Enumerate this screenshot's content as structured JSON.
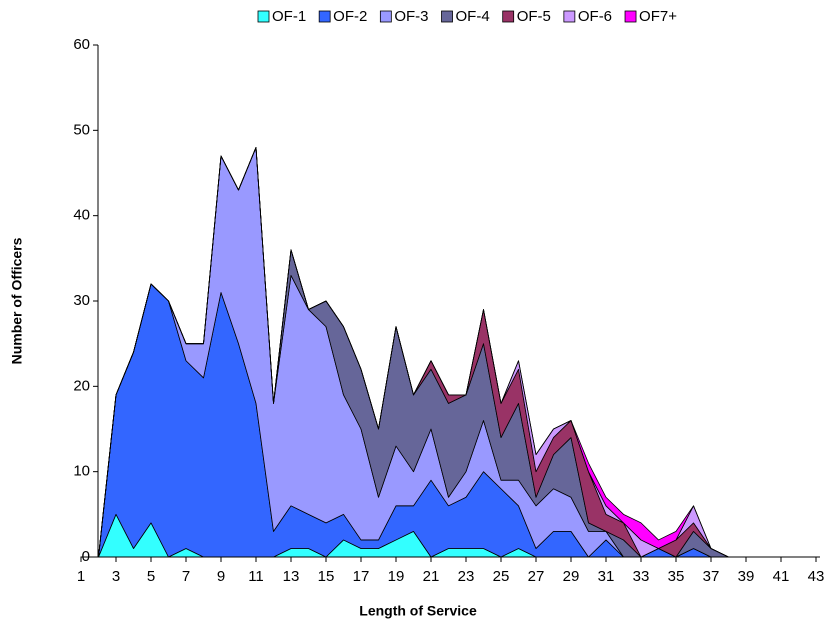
{
  "chart_data": {
    "type": "stacked_area",
    "x_label": "Length of Service",
    "y_label": "Number of Officers",
    "x": [
      1,
      2,
      3,
      4,
      5,
      6,
      7,
      8,
      9,
      10,
      11,
      12,
      13,
      14,
      15,
      16,
      17,
      18,
      19,
      20,
      21,
      22,
      23,
      24,
      25,
      26,
      27,
      28,
      29,
      30,
      31,
      32,
      33,
      34,
      35,
      36,
      37,
      38,
      39,
      40,
      41,
      42,
      43
    ],
    "series": [
      {
        "name": "OF-1",
        "color": "#33ffff",
        "values": [
          0,
          0,
          5,
          1,
          4,
          0,
          1,
          0,
          0,
          0,
          0,
          0,
          1,
          1,
          0,
          2,
          1,
          1,
          2,
          3,
          0,
          1,
          1,
          1,
          0,
          1,
          0,
          0,
          0,
          0,
          0,
          0,
          0,
          0,
          0,
          0,
          0,
          0,
          0,
          0,
          0,
          0,
          0
        ]
      },
      {
        "name": "OF-2",
        "color": "#3366ff",
        "values": [
          0,
          0,
          14,
          23,
          28,
          30,
          22,
          21,
          31,
          25,
          18,
          3,
          5,
          4,
          4,
          3,
          1,
          1,
          4,
          3,
          9,
          5,
          6,
          9,
          8,
          5,
          1,
          3,
          3,
          0,
          2,
          0,
          0,
          1,
          0,
          1,
          0,
          0,
          0,
          0,
          0,
          0,
          0
        ]
      },
      {
        "name": "OF-3",
        "color": "#9999ff",
        "values": [
          0,
          0,
          0,
          0,
          0,
          0,
          2,
          4,
          16,
          18,
          30,
          15,
          27,
          24,
          23,
          14,
          13,
          5,
          7,
          4,
          6,
          1,
          3,
          6,
          1,
          3,
          5,
          5,
          4,
          3,
          1,
          0,
          0,
          0,
          0,
          0,
          0,
          0,
          0,
          0,
          0,
          0,
          0
        ]
      },
      {
        "name": "OF-4",
        "color": "#666699",
        "values": [
          0,
          0,
          0,
          0,
          0,
          0,
          0,
          0,
          0,
          0,
          0,
          0,
          3,
          0,
          3,
          8,
          7,
          8,
          14,
          9,
          7,
          11,
          9,
          9,
          5,
          9,
          1,
          4,
          7,
          1,
          0,
          2,
          0,
          0,
          0,
          2,
          1,
          0,
          0,
          0,
          0,
          0,
          0
        ]
      },
      {
        "name": "OF-5",
        "color": "#993366",
        "values": [
          0,
          0,
          0,
          0,
          0,
          0,
          0,
          0,
          0,
          0,
          0,
          0,
          0,
          0,
          0,
          0,
          0,
          0,
          0,
          0,
          1,
          1,
          0,
          4,
          4,
          4,
          3,
          2,
          2,
          6,
          2,
          2,
          0,
          0,
          2,
          1,
          0,
          0,
          0,
          0,
          0,
          0,
          0
        ]
      },
      {
        "name": "OF-6",
        "color": "#cc99ff",
        "values": [
          0,
          0,
          0,
          0,
          0,
          0,
          0,
          0,
          0,
          0,
          0,
          0,
          0,
          0,
          0,
          0,
          0,
          0,
          0,
          0,
          0,
          0,
          0,
          0,
          0,
          1,
          2,
          1,
          0,
          0,
          1,
          0,
          2,
          0,
          0,
          2,
          0,
          0,
          0,
          0,
          0,
          0,
          0
        ]
      },
      {
        "name": "OF7+",
        "color": "#ff00ff",
        "values": [
          0,
          0,
          0,
          0,
          0,
          0,
          0,
          0,
          0,
          0,
          0,
          0,
          0,
          0,
          0,
          0,
          0,
          0,
          0,
          0,
          0,
          0,
          0,
          0,
          0,
          0,
          0,
          0,
          0,
          1,
          1,
          1,
          2,
          1,
          1,
          0,
          0,
          0,
          0,
          0,
          0,
          0,
          0
        ]
      }
    ],
    "xlim": [
      1,
      43
    ],
    "xticks": [
      1,
      3,
      5,
      7,
      9,
      11,
      13,
      15,
      17,
      19,
      21,
      23,
      25,
      27,
      29,
      31,
      33,
      35,
      37,
      39,
      41,
      43
    ],
    "ylim": [
      0,
      60
    ],
    "yticks": [
      0,
      10,
      20,
      30,
      40,
      50,
      60
    ],
    "grid": false,
    "legend": "top"
  }
}
